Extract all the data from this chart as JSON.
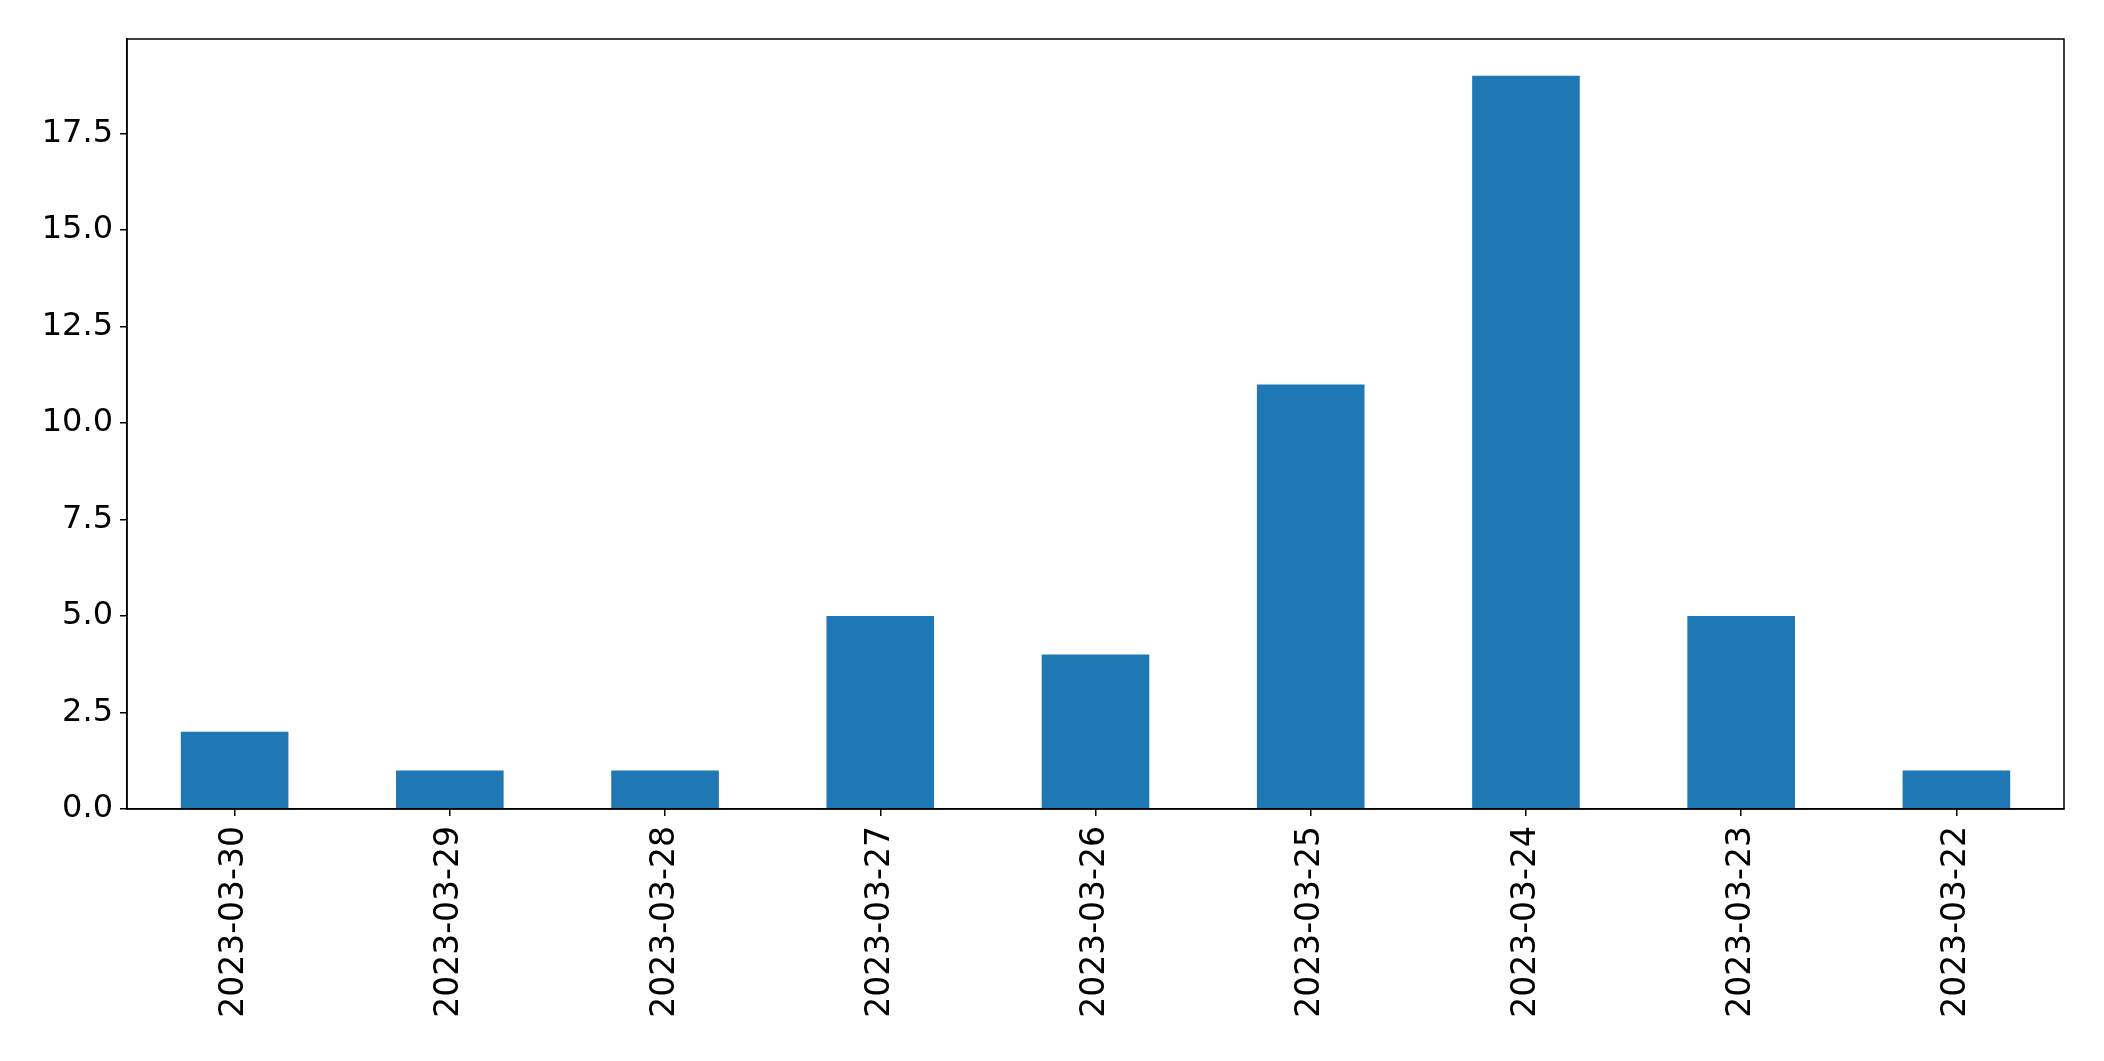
{
  "chart_data": {
    "type": "bar",
    "categories": [
      "2023-03-30",
      "2023-03-29",
      "2023-03-28",
      "2023-03-27",
      "2023-03-26",
      "2023-03-25",
      "2023-03-24",
      "2023-03-23",
      "2023-03-22"
    ],
    "values": [
      2,
      1,
      1,
      5,
      4,
      11,
      19,
      5,
      1
    ],
    "color": "#1f77b4",
    "ylim": [
      0,
      19.95
    ],
    "yticks": [
      {
        "value": 0,
        "label": "0.0"
      },
      2.5,
      {
        "value": 5,
        "label": "5.0"
      },
      7.5,
      {
        "value": 10,
        "label": "10.0"
      },
      12.5,
      {
        "value": 15,
        "label": "15.0"
      },
      17.5
    ],
    "grid": false,
    "legend": false
  }
}
